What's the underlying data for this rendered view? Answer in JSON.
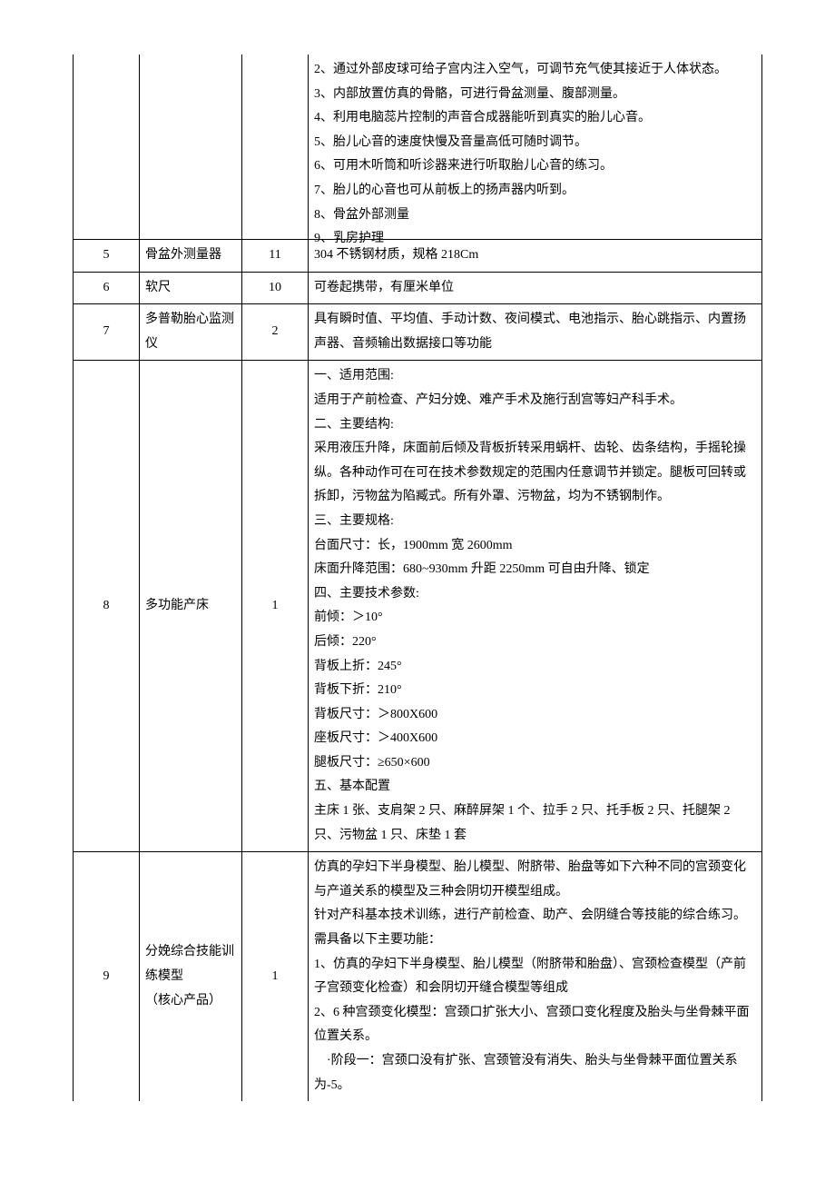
{
  "rows": [
    {
      "num": "",
      "name": "",
      "qty": "",
      "desc": "2、通过外部皮球可给子宫内注入空气，可调节充气使其接近于人体状态。\n3、内部放置仿真的骨骼，可进行骨盆测量、腹部测量。\n4、利用电脑蕊片控制的声音合成器能听到真实的胎儿心音。\n5、胎儿心音的速度快慢及音量高低可随时调节。\n6、可用木听筒和听诊器来进行听取胎儿心音的练习。\n7、胎儿的心音也可从前板上的扬声器内听到。\n8、骨盆外部测量\n9、乳房护理"
    },
    {
      "num": "5",
      "name": "骨盆外测量器",
      "qty": "11",
      "desc": "304 不锈钢材质，规格 218Cm"
    },
    {
      "num": "6",
      "name": "软尺",
      "qty": "10",
      "desc": "可卷起携带，有厘米单位"
    },
    {
      "num": "7",
      "name": "多普勒胎心监测仪",
      "qty": "2",
      "desc": "具有瞬时值、平均值、手动计数、夜间模式、电池指示、胎心跳指示、内置扬声器、音频输出数据接口等功能"
    },
    {
      "num": "8",
      "name": "多功能产床",
      "qty": "1",
      "desc": "一、适用范围:\n适用于产前检查、产妇分娩、难产手术及施行刮宫等妇产科手术。\n二、主要结构:\n采用液压升降，床面前后倾及背板折转采用蜗杆、齿轮、齿条结构，手摇轮操纵。各种动作可在可在技术参数规定的范围内任意调节并锁定。腿板可回转或拆卸，污物盆为陷臧式。所有外罩、污物盆，均为不锈钢制作。\n三、主要规格:\n台面尺寸：长，1900mm 宽 2600mm\n床面升降范围：680~930mm 升距 2250mm 可自由升降、锁定\n四、主要技术参数:\n前倾：＞10°\n后倾：220°\n背板上折：245°\n背板下折：210°\n背板尺寸：＞800X600\n座板尺寸：＞400X600\n腿板尺寸：≥650×600\n五、基本配置\n主床 1 张、支肩架 2 只、麻醉屏架 1 个、拉手 2 只、托手板 2 只、托腿架 2 只、污物盆 1 只、床垫 1 套"
    },
    {
      "num": "9",
      "name": "分娩综合技能训练模型\n（核心产品）",
      "qty": "1",
      "desc": "仿真的孕妇下半身模型、胎儿模型、附脐带、胎盘等如下六种不同的宫颈变化与产道关系的模型及三种会阴切开模型组成。\n针对产科基本技术训练，进行产前检查、助产、会阴缝合等技能的综合练习。\n需具备以下主要功能：\n1、仿真的孕妇下半身模型、胎儿模型（附脐带和胎盘）、宫颈检查模型（产前子宫颈变化检查）和会阴切开缝合模型等组成\n2、6 种宫颈变化模型：宫颈口扩张大小、宫颈口变化程度及胎头与坐骨棘平面位置关系。\n　·阶段一：宫颈口没有扩张、宫颈管没有消失、胎头与坐骨棘平面位置关系为-5。"
    }
  ]
}
